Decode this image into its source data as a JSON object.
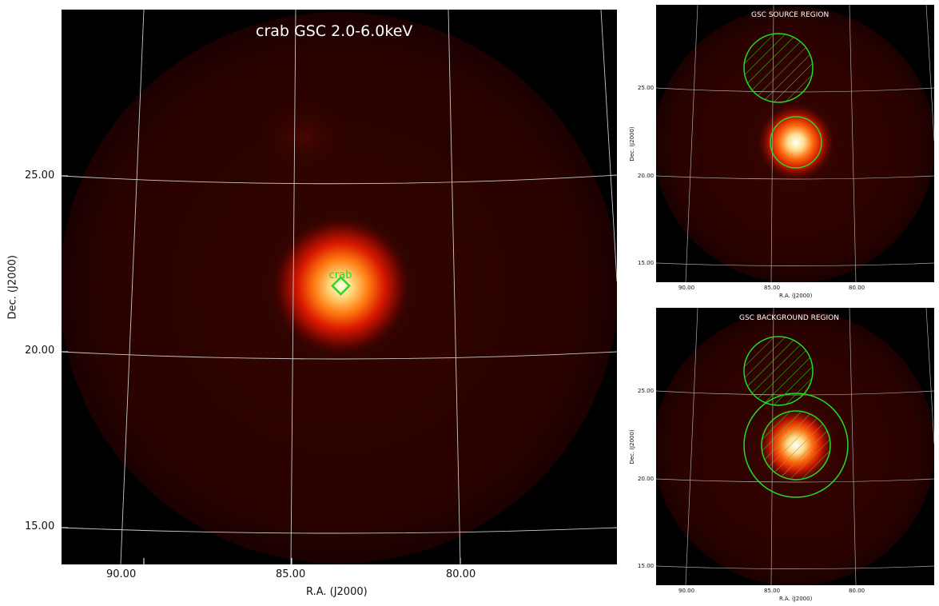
{
  "main": {
    "title": "crab GSC 2.0-6.0keV",
    "xlabel": "R.A. (J2000)",
    "ylabel": "Dec. (J2000)",
    "x_ticks": [
      "90.00",
      "85.00",
      "80.00"
    ],
    "y_ticks": [
      "25.00",
      "20.00",
      "15.00"
    ],
    "source_label": "crab"
  },
  "source_panel": {
    "title": "GSC SOURCE REGION",
    "xlabel": "R.A. (J2000)",
    "ylabel": "Dec. (J2000)",
    "x_ticks": [
      "90.00",
      "85.00",
      "80.00"
    ],
    "y_ticks": [
      "25.00",
      "20.00",
      "15.00"
    ]
  },
  "background_panel": {
    "title": "GSC BACKGROUND REGION",
    "xlabel": "R.A. (J2000)",
    "ylabel": "Dec. (J2000)",
    "x_ticks": [
      "90.00",
      "85.00",
      "80.00"
    ],
    "y_ticks": [
      "25.00",
      "20.00",
      "15.00"
    ]
  },
  "colors": {
    "region_green": "#22dd22",
    "grid": "#c8c8c8",
    "field_dark": "#2a0200"
  }
}
